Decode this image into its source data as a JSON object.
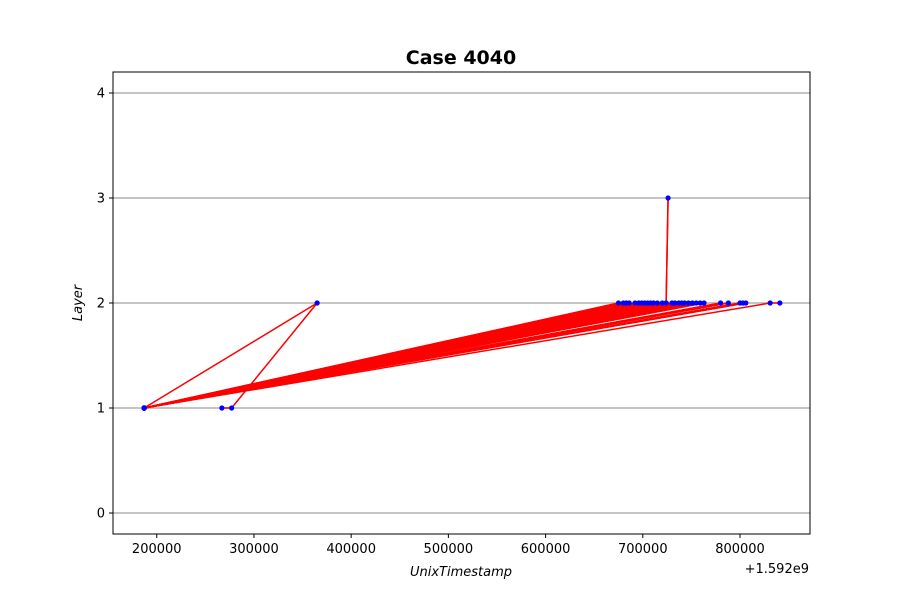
{
  "chart_data": {
    "type": "line",
    "title": "Case 4040",
    "xlabel": "UnixTimestamp",
    "ylabel": "Layer",
    "x_offset_label": "+1.592e9",
    "xlim": [
      155000,
      872000
    ],
    "ylim": [
      -0.2,
      4.2
    ],
    "x_ticks": [
      200000,
      300000,
      400000,
      500000,
      600000,
      700000,
      800000
    ],
    "x_tick_labels": [
      "200000",
      "300000",
      "400000",
      "500000",
      "600000",
      "700000",
      "800000"
    ],
    "y_ticks": [
      0,
      1,
      2,
      3,
      4
    ],
    "y_tick_labels": [
      "0",
      "1",
      "2",
      "3",
      "4"
    ],
    "grid": "horizontal",
    "line_color": "#ff0000",
    "marker_color": "#0000ff",
    "path_x": [
      267000,
      277000,
      365000,
      187000,
      675000,
      187000,
      680000,
      187000,
      683000,
      187000,
      686000,
      187000,
      692000,
      187000,
      696000,
      187000,
      699000,
      187000,
      702000,
      187000,
      705000,
      187000,
      708000,
      187000,
      711000,
      187000,
      715000,
      187000,
      720000,
      187000,
      724000,
      726000,
      724000,
      187000,
      730000,
      187000,
      733000,
      187000,
      737000,
      187000,
      740000,
      187000,
      743000,
      187000,
      747000,
      187000,
      751000,
      187000,
      755000,
      187000,
      759000,
      187000,
      763000,
      187000,
      780000,
      187000,
      788000,
      187000,
      800000,
      187000,
      803000,
      187000,
      806000,
      187000,
      831000,
      841000
    ],
    "path_y": [
      1,
      1,
      2,
      1,
      2,
      1,
      2,
      1,
      2,
      1,
      2,
      1,
      2,
      1,
      2,
      1,
      2,
      1,
      2,
      1,
      2,
      1,
      2,
      1,
      2,
      1,
      2,
      1,
      2,
      1,
      2,
      3,
      2,
      1,
      2,
      1,
      2,
      1,
      2,
      1,
      2,
      1,
      2,
      1,
      2,
      1,
      2,
      1,
      2,
      1,
      2,
      1,
      2,
      1,
      2,
      1,
      2,
      1,
      2,
      1,
      2,
      1,
      2,
      1,
      2,
      2
    ]
  }
}
